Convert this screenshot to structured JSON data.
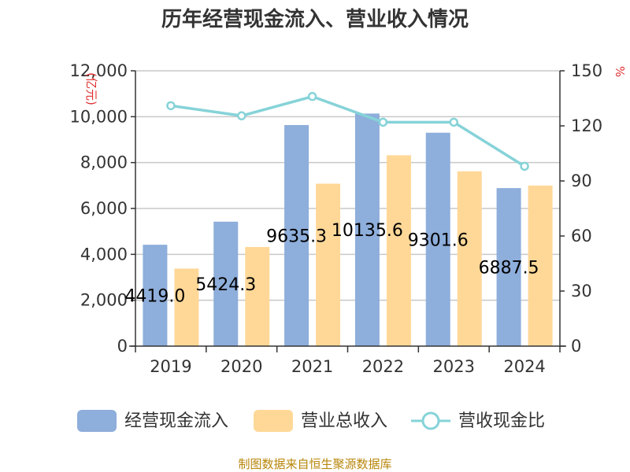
{
  "chart_data": {
    "type": "bar",
    "title": "历年经营现金流入、营业收入情况",
    "categories": [
      "2019",
      "2020",
      "2021",
      "2022",
      "2023",
      "2024"
    ],
    "series": [
      {
        "name": "经营现金流入",
        "kind": "bar",
        "axis": "left",
        "color": "#8eaedb",
        "values": [
          4419.0,
          5424.3,
          9635.3,
          10135.6,
          9301.6,
          6887.5
        ]
      },
      {
        "name": "营业总收入",
        "kind": "bar",
        "axis": "left",
        "color": "#ffd898",
        "values": [
          3380,
          4320,
          7080,
          8320,
          7620,
          7000
        ]
      },
      {
        "name": "营收现金比",
        "kind": "line",
        "axis": "right",
        "color": "#86d3d8",
        "values": [
          131,
          125.5,
          136,
          122,
          122,
          98
        ]
      }
    ],
    "bar_labels": [
      "4419.0",
      "5424.3",
      "9635.3",
      "10135.6",
      "9301.6",
      "6887.5"
    ],
    "left_axis": {
      "unit": "(亿元)",
      "min": 0,
      "max": 12000,
      "ticks": [
        0,
        2000,
        4000,
        6000,
        8000,
        10000,
        12000
      ],
      "tick_labels": [
        "0",
        "2,000",
        "4,000",
        "6,000",
        "8,000",
        "10,000",
        "12,000"
      ]
    },
    "right_axis": {
      "unit": "%",
      "min": 0,
      "max": 150,
      "ticks": [
        0,
        30,
        60,
        90,
        120,
        150
      ],
      "tick_labels": [
        "0",
        "30",
        "60",
        "90",
        "120",
        "150"
      ]
    },
    "grid": true,
    "legend_position": "bottom"
  },
  "source": "制图数据来自恒生聚源数据库"
}
